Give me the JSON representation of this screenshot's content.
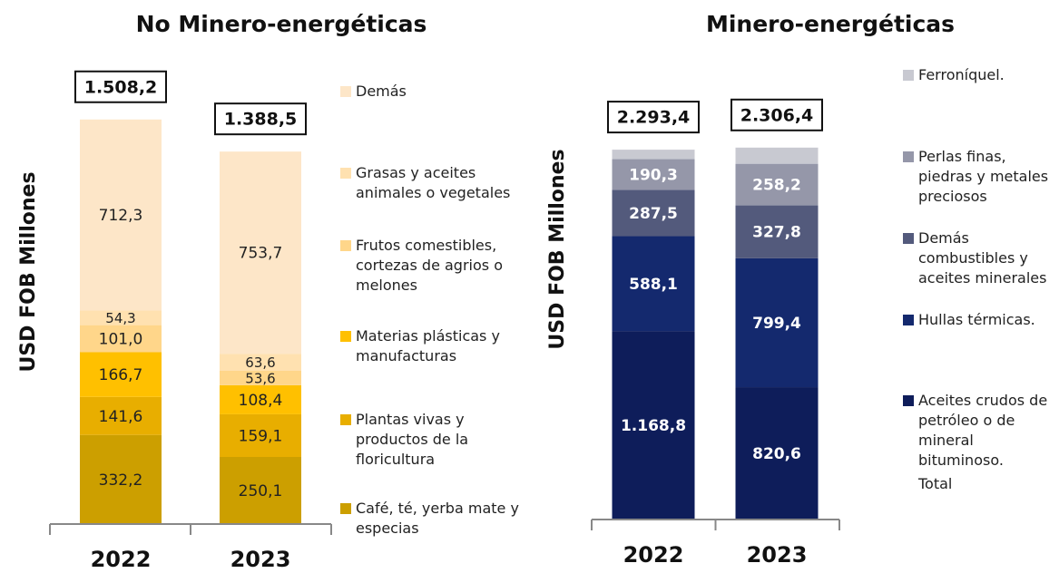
{
  "chart_data": [
    {
      "type": "bar",
      "stacked": true,
      "title": "No Minero-energéticas",
      "y_label": "USD FOB Millones",
      "categories": [
        "2022",
        "2023"
      ],
      "ylim": [
        0,
        1700
      ],
      "series": [
        {
          "name": "Café, té, yerba mate y especias",
          "color": "#cc9f00",
          "values": [
            332.2,
            250.1
          ],
          "value_labels": [
            "332,2",
            "250,1"
          ]
        },
        {
          "name": "Plantas vivas y productos de la floricultura",
          "color": "#e8ae00",
          "values": [
            141.6,
            159.1
          ],
          "value_labels": [
            "141,6",
            "159,1"
          ]
        },
        {
          "name": "Materias plásticas y manufacturas",
          "color": "#ffc000",
          "values": [
            166.7,
            108.4
          ],
          "value_labels": [
            "166,7",
            "108,4"
          ]
        },
        {
          "name": "Frutos comestibles, cortezas de agrios o melones",
          "color": "#ffd68a",
          "values": [
            101.0,
            53.6
          ],
          "value_labels": [
            "101,0",
            "53,6"
          ]
        },
        {
          "name": "Grasas y aceites animales o vegetales",
          "color": "#ffe1b0",
          "values": [
            54.3,
            63.6
          ],
          "value_labels": [
            "54,3",
            "63,6"
          ]
        },
        {
          "name": "Demás",
          "color": "#fde6c8",
          "values": [
            712.3,
            753.7
          ],
          "value_labels": [
            "712,3",
            "753,7"
          ]
        }
      ],
      "totals": {
        "values": [
          1508.2,
          1388.5
        ],
        "value_labels": [
          "1.508,2",
          "1.388,5"
        ]
      }
    },
    {
      "type": "bar",
      "stacked": true,
      "title": "Minero-energéticas",
      "y_label": "USD FOB Millones",
      "categories": [
        "2022",
        "2023"
      ],
      "ylim": [
        0,
        2800
      ],
      "series": [
        {
          "name": "Aceites crudos de petróleo o de mineral bituminoso.",
          "color": "#0e1d5a",
          "values": [
            1168.8,
            820.6
          ],
          "value_labels": [
            "1.168,8",
            "820,6"
          ]
        },
        {
          "name": "Hullas térmicas.",
          "color": "#14296e",
          "values": [
            588.1,
            799.4
          ],
          "value_labels": [
            "588,1",
            "799,4"
          ]
        },
        {
          "name": "Demás combustibles y aceites minerales",
          "color": "#535a7c",
          "values": [
            287.5,
            327.8
          ],
          "value_labels": [
            "287,5",
            "327,8"
          ]
        },
        {
          "name": "Perlas finas, piedras y metales preciosos",
          "color": "#9597a9",
          "values": [
            190.3,
            258.2
          ],
          "value_labels": [
            "190,3",
            "258,2"
          ]
        },
        {
          "name": "Ferroníquel.",
          "color": "#c8c9d1",
          "values": [
            58.7,
            100.4
          ]
        }
      ],
      "totals": {
        "name": "Total",
        "values": [
          2293.4,
          2306.4
        ],
        "value_labels": [
          "2.293,4",
          "2.306,4"
        ]
      }
    }
  ]
}
